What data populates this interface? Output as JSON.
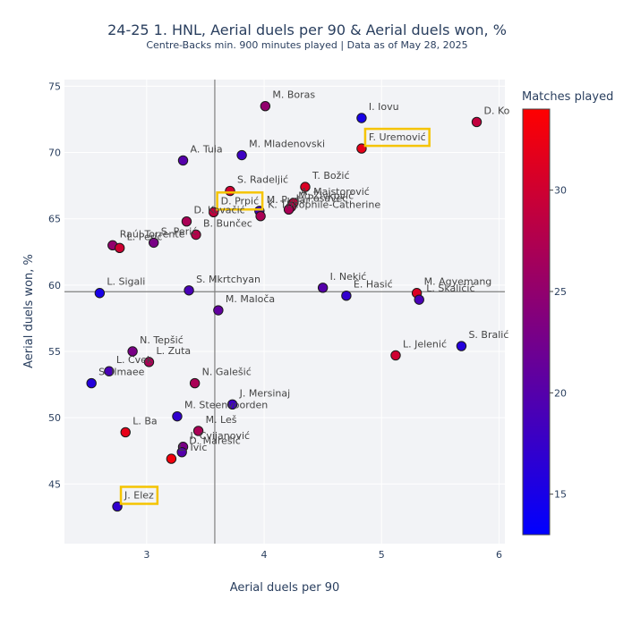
{
  "title": "24-25 1. HNL, Aerial duels per 90 & Aerial duels won, %",
  "subtitle": "Centre-Backs min. 900 minutes played | Data as of May 28, 2025",
  "chart_data": {
    "type": "scatter",
    "title": "24-25 1. HNL, Aerial duels per 90 & Aerial duels won, %",
    "subtitle": "Centre-Backs min. 900 minutes played | Data as of May 28, 2025",
    "xlabel": "Aerial duels per 90",
    "ylabel": "Aerial duels won, %",
    "xlim": [
      2.3,
      6.05
    ],
    "ylim": [
      40.5,
      75.5
    ],
    "x_ticks": [
      3,
      4,
      5,
      6
    ],
    "y_ticks": [
      45,
      50,
      55,
      60,
      65,
      70,
      75
    ],
    "reference_lines": {
      "x": 3.58,
      "y": 59.5
    },
    "grid": true,
    "colorbar": {
      "title": "Matches played",
      "min": 13,
      "max": 34,
      "ticks": [
        15,
        20,
        25,
        30
      ],
      "color_low": "#0000ff",
      "color_high": "#ff0000"
    },
    "highlighted": [
      "F. Uremović",
      "D. Prpić",
      "J. Elez"
    ],
    "highlight_color": "#f5c400",
    "points": [
      {
        "name": "M. Boras",
        "x": 4.01,
        "y": 73.5,
        "matches": 25
      },
      {
        "name": "I. Iovu",
        "x": 4.83,
        "y": 72.6,
        "matches": 15
      },
      {
        "name": "D. Ko",
        "x": 5.81,
        "y": 72.3,
        "matches": 29
      },
      {
        "name": "F. Uremović",
        "x": 4.83,
        "y": 70.3,
        "matches": 32
      },
      {
        "name": "M. Mladenovski",
        "x": 3.81,
        "y": 69.8,
        "matches": 18
      },
      {
        "name": "A. Tuia",
        "x": 3.31,
        "y": 69.4,
        "matches": 20
      },
      {
        "name": "T. Božić",
        "x": 4.35,
        "y": 67.4,
        "matches": 31
      },
      {
        "name": "S. Radeljić",
        "x": 3.71,
        "y": 67.1,
        "matches": 30
      },
      {
        "name": "A. Majstorović",
        "x": 4.25,
        "y": 66.2,
        "matches": 29
      },
      {
        "name": "M. Živković",
        "x": 4.23,
        "y": 65.9,
        "matches": 28
      },
      {
        "name": "L. Posavec",
        "x": 4.21,
        "y": 65.7,
        "matches": 27
      },
      {
        "name": "M. Pudar",
        "x": 3.96,
        "y": 65.6,
        "matches": 18
      },
      {
        "name": "D. Prpić",
        "x": 3.57,
        "y": 65.5,
        "matches": 29
      },
      {
        "name": "K. Theophile-Catherine",
        "x": 3.97,
        "y": 65.2,
        "matches": 27
      },
      {
        "name": "D. Kovačić",
        "x": 3.34,
        "y": 64.8,
        "matches": 27
      },
      {
        "name": "B. Bunčec",
        "x": 3.42,
        "y": 63.8,
        "matches": 28
      },
      {
        "name": "S. Perić",
        "x": 3.06,
        "y": 63.2,
        "matches": 23
      },
      {
        "name": "Raúl Torrente",
        "x": 2.71,
        "y": 63.0,
        "matches": 25
      },
      {
        "name": "L. Peric",
        "x": 2.77,
        "y": 62.8,
        "matches": 30
      },
      {
        "name": "L. Sigali",
        "x": 2.6,
        "y": 59.4,
        "matches": 15
      },
      {
        "name": "S. Mkrtchyan",
        "x": 3.36,
        "y": 59.6,
        "matches": 19
      },
      {
        "name": "I. Nekić",
        "x": 4.5,
        "y": 59.8,
        "matches": 20
      },
      {
        "name": "E. Hasić",
        "x": 4.7,
        "y": 59.2,
        "matches": 17
      },
      {
        "name": "M. Agyemang",
        "x": 5.3,
        "y": 59.4,
        "matches": 31
      },
      {
        "name": "L. Skaličić",
        "x": 5.32,
        "y": 58.9,
        "matches": 19
      },
      {
        "name": "M. Maloča",
        "x": 3.61,
        "y": 58.1,
        "matches": 21
      },
      {
        "name": "S. Bralić",
        "x": 5.68,
        "y": 55.4,
        "matches": 16
      },
      {
        "name": "L. Jelenić",
        "x": 5.12,
        "y": 54.7,
        "matches": 30
      },
      {
        "name": "N. Tepšić",
        "x": 2.88,
        "y": 55.0,
        "matches": 23
      },
      {
        "name": "L. Zuta",
        "x": 3.02,
        "y": 54.2,
        "matches": 27
      },
      {
        "name": "L. Cvek",
        "x": 2.68,
        "y": 53.5,
        "matches": 19
      },
      {
        "name": "S. Ilmaee",
        "x": 2.53,
        "y": 52.6,
        "matches": 16
      },
      {
        "name": "N. Galešić",
        "x": 3.41,
        "y": 52.6,
        "matches": 27
      },
      {
        "name": "J. Mersinaj",
        "x": 3.73,
        "y": 51.0,
        "matches": 18
      },
      {
        "name": "M. Steenvoorden",
        "x": 3.26,
        "y": 50.1,
        "matches": 17
      },
      {
        "name": "L. Ba",
        "x": 2.82,
        "y": 48.9,
        "matches": 32
      },
      {
        "name": "M. Leš",
        "x": 3.44,
        "y": 49.0,
        "matches": 27
      },
      {
        "name": "I. Cvijanović",
        "x": 3.31,
        "y": 47.8,
        "matches": 23
      },
      {
        "name": "D. Marešić",
        "x": 3.3,
        "y": 47.4,
        "matches": 20
      },
      {
        "name": "L. Ivic",
        "x": 3.21,
        "y": 46.9,
        "matches": 33
      },
      {
        "name": "J. Elez",
        "x": 2.75,
        "y": 43.3,
        "matches": 17
      }
    ]
  }
}
